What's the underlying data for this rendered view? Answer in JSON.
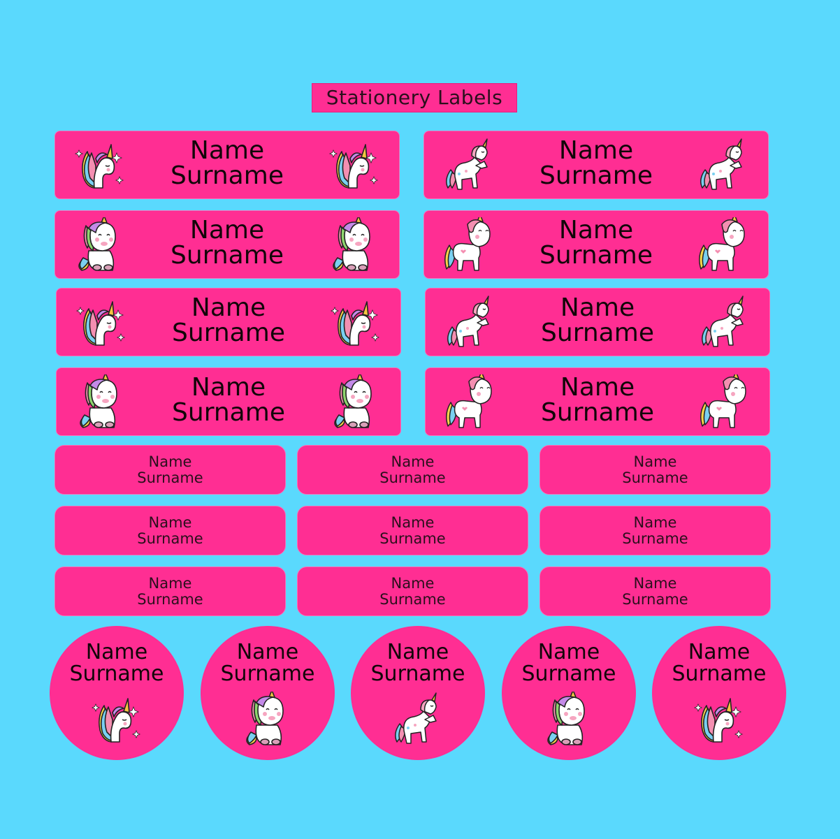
{
  "title": "Stationery Labels",
  "large_labels": [
    {
      "line1": "Name",
      "line2": "Surname",
      "icon": "unicorn-head-icon"
    },
    {
      "line1": "Name",
      "line2": "Surname",
      "icon": "rearing-unicorn-icon"
    },
    {
      "line1": "Name",
      "line2": "Surname",
      "icon": "sitting-unicorn-icon"
    },
    {
      "line1": "Name",
      "line2": "Surname",
      "icon": "standing-unicorn-icon"
    },
    {
      "line1": "Name",
      "line2": "Surname",
      "icon": "unicorn-head-icon"
    },
    {
      "line1": "Name",
      "line2": "Surname",
      "icon": "rearing-unicorn-icon"
    },
    {
      "line1": "Name",
      "line2": "Surname",
      "icon": "sitting-unicorn-icon"
    },
    {
      "line1": "Name",
      "line2": "Surname",
      "icon": "standing-unicorn-icon"
    }
  ],
  "small_labels": [
    {
      "line1": "Name",
      "line2": "Surname"
    },
    {
      "line1": "Name",
      "line2": "Surname"
    },
    {
      "line1": "Name",
      "line2": "Surname"
    },
    {
      "line1": "Name",
      "line2": "Surname"
    },
    {
      "line1": "Name",
      "line2": "Surname"
    },
    {
      "line1": "Name",
      "line2": "Surname"
    },
    {
      "line1": "Name",
      "line2": "Surname"
    },
    {
      "line1": "Name",
      "line2": "Surname"
    },
    {
      "line1": "Name",
      "line2": "Surname"
    }
  ],
  "round_labels": [
    {
      "line1": "Name",
      "line2": "Surname",
      "icon": "unicorn-head-icon"
    },
    {
      "line1": "Name",
      "line2": "Surname",
      "icon": "sitting-unicorn-icon"
    },
    {
      "line1": "Name",
      "line2": "Surname",
      "icon": "rearing-unicorn-icon"
    },
    {
      "line1": "Name",
      "line2": "Surname",
      "icon": "sitting-unicorn-icon"
    },
    {
      "line1": "Name",
      "line2": "Surname",
      "icon": "unicorn-head-icon"
    }
  ],
  "colors": {
    "background": "#5ad9fd",
    "label": "#ff2e93",
    "text": "#120609"
  }
}
